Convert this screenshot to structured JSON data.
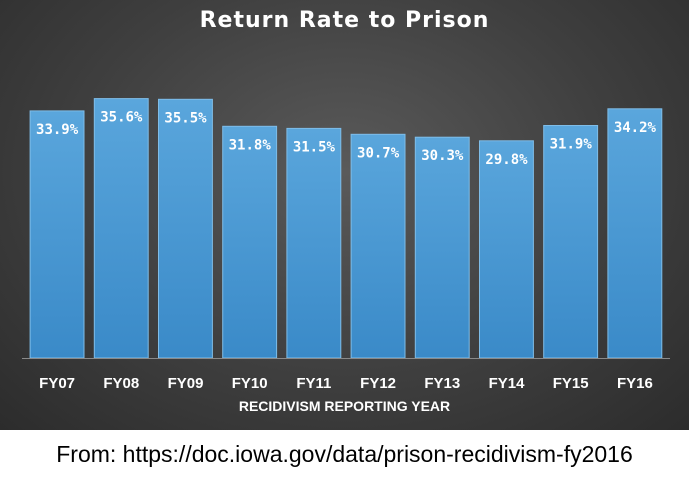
{
  "chart_data": {
    "type": "bar",
    "title": "Return Rate to Prison",
    "xlabel": "RECIDIVISM REPORTING YEAR",
    "ylabel": "",
    "categories": [
      "FY07",
      "FY08",
      "FY09",
      "FY10",
      "FY11",
      "FY12",
      "FY13",
      "FY14",
      "FY15",
      "FY16"
    ],
    "values": [
      33.9,
      35.6,
      35.5,
      31.8,
      31.5,
      30.7,
      30.3,
      29.8,
      31.9,
      34.2
    ],
    "data_labels": [
      "33.9%",
      "35.6%",
      "35.5%",
      "31.8%",
      "31.5%",
      "30.7%",
      "30.3%",
      "29.8%",
      "31.9%",
      "34.2%"
    ],
    "ylim": [
      0,
      36.5
    ],
    "grid": false,
    "legend": "none",
    "colors": {
      "bar_top": "#5aa6dc",
      "bar_bottom": "#3a8ac8",
      "bar_edge": "#7fbde8",
      "label": "#ffffff",
      "axis": "#8a8a8a"
    }
  },
  "footer": {
    "source": "From: https://doc.iowa.gov/data/prison-recidivism-fy2016"
  }
}
